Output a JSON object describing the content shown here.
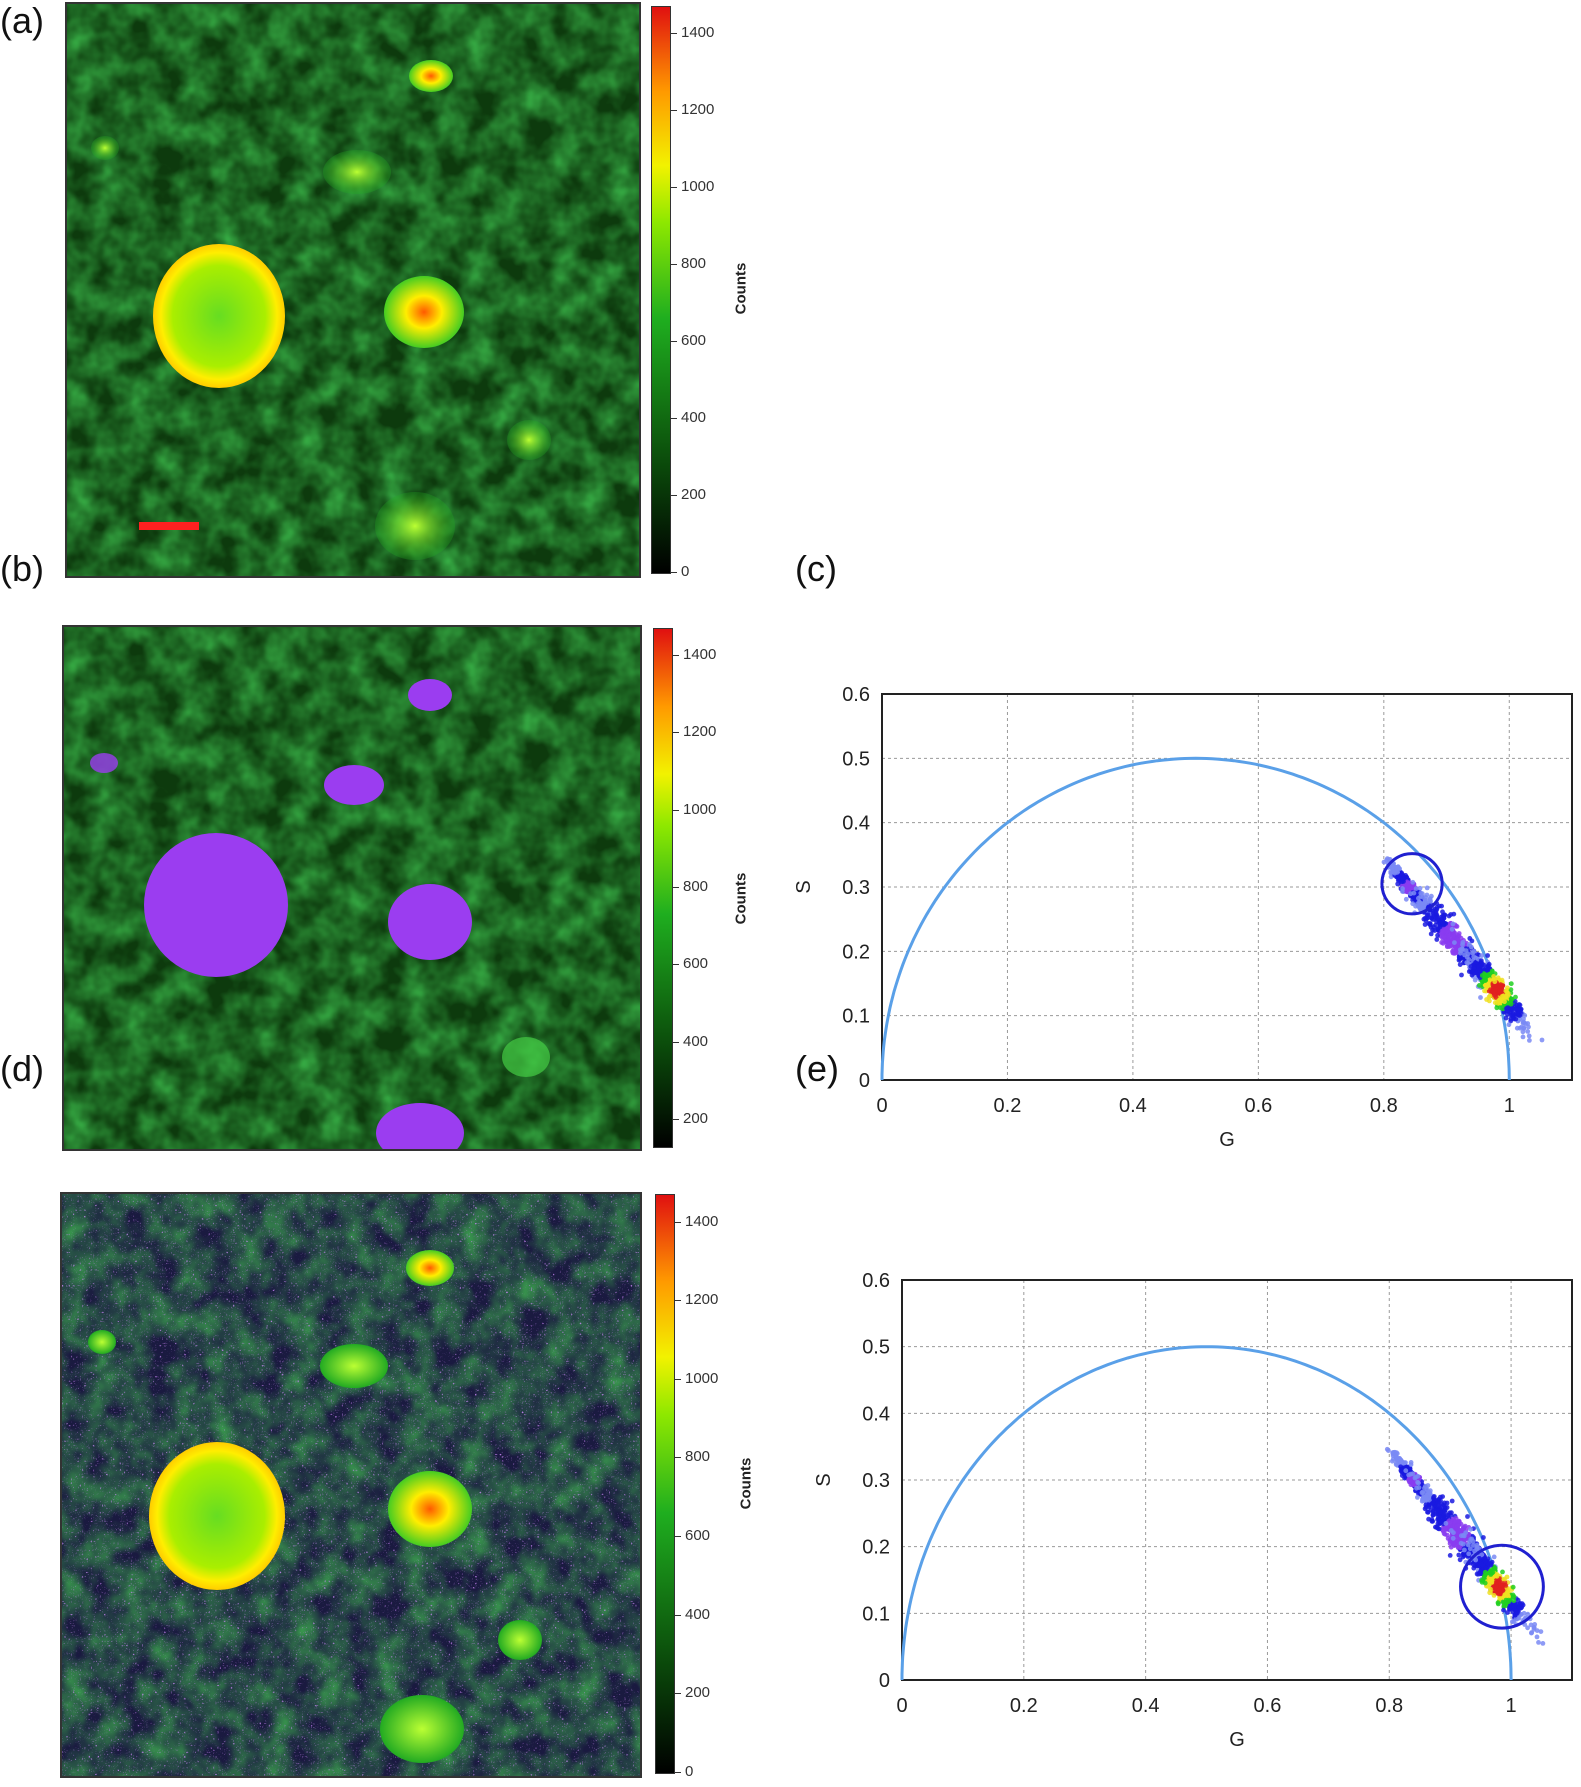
{
  "panels": {
    "a": {
      "letter": "(a)"
    },
    "b": {
      "letter": "(b)"
    },
    "c": {
      "letter": "(c)"
    },
    "d": {
      "letter": "(d)"
    },
    "e": {
      "letter": "(e)"
    }
  },
  "colorbar": {
    "label": "Counts",
    "ticks_a": [
      "1400",
      "1200",
      "1000",
      "800",
      "600",
      "400",
      "200",
      "0"
    ],
    "ticks_b": [
      "1400",
      "1200",
      "1000",
      "800",
      "600",
      "400",
      "200"
    ],
    "ticks_d": [
      "1400",
      "1200",
      "1000",
      "800",
      "600",
      "400",
      "200",
      "0"
    ]
  },
  "colors": {
    "tissue_green": "#22a022",
    "highlight_purple": "#9b3df0",
    "circle_line": "#5aa0e8",
    "cursor_circle": "#2020d0"
  },
  "chart_data": [
    {
      "panel": "c",
      "type": "scatter",
      "title": "",
      "xlabel": "G",
      "ylabel": "S",
      "xlim": [
        0,
        1.1
      ],
      "ylim": [
        0,
        0.6
      ],
      "xticks": [
        "0",
        "0.2",
        "0.4",
        "0.6",
        "0.8",
        "1"
      ],
      "yticks": [
        "0",
        "0.1",
        "0.2",
        "0.3",
        "0.4",
        "0.5",
        "0.6"
      ],
      "grid": true,
      "universal_circle": {
        "center": [
          0.5,
          0
        ],
        "radius": 0.5
      },
      "clusters": [
        {
          "center": [
            0.84,
            0.3
          ],
          "spread": [
            0.015,
            0.012
          ]
        },
        {
          "center": [
            0.91,
            0.22
          ],
          "spread": [
            0.03,
            0.03
          ]
        },
        {
          "center": [
            0.98,
            0.14
          ],
          "spread": [
            0.025,
            0.025
          ]
        }
      ],
      "cursor": {
        "center": [
          0.845,
          0.305
        ],
        "radius": 0.048
      }
    },
    {
      "panel": "e",
      "type": "scatter",
      "title": "",
      "xlabel": "G",
      "ylabel": "S",
      "xlim": [
        0,
        1.1
      ],
      "ylim": [
        0,
        0.6
      ],
      "xticks": [
        "0",
        "0.2",
        "0.4",
        "0.6",
        "0.8",
        "1"
      ],
      "yticks": [
        "0",
        "0.1",
        "0.2",
        "0.3",
        "0.4",
        "0.5",
        "0.6"
      ],
      "grid": true,
      "universal_circle": {
        "center": [
          0.5,
          0
        ],
        "radius": 0.5
      },
      "clusters": [
        {
          "center": [
            0.84,
            0.3
          ],
          "spread": [
            0.015,
            0.012
          ]
        },
        {
          "center": [
            0.91,
            0.22
          ],
          "spread": [
            0.03,
            0.03
          ]
        },
        {
          "center": [
            0.98,
            0.14
          ],
          "spread": [
            0.025,
            0.025
          ]
        }
      ],
      "cursor": {
        "center": [
          0.985,
          0.14
        ],
        "radius": 0.068
      }
    }
  ]
}
